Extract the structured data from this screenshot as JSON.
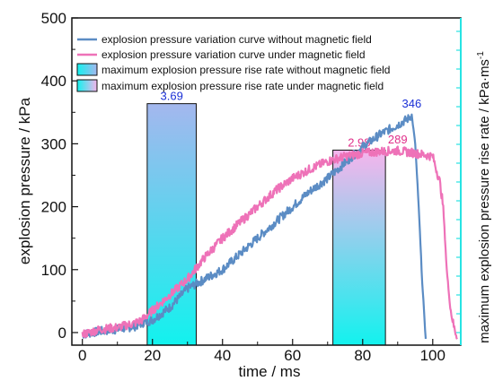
{
  "chart_data": {
    "type": "line",
    "xlabel": "time / ms",
    "ylabel": "explosion pressure / kPa",
    "y2label": "maximum explosion pressure rise rate / kPa·ms",
    "y2label_sup": "-1",
    "xlim": [
      -3,
      108
    ],
    "ylim": [
      -20,
      500
    ],
    "x_ticks": [
      0,
      20,
      40,
      60,
      80,
      100
    ],
    "y_ticks": [
      0,
      100,
      200,
      300,
      400,
      500
    ],
    "grid": false,
    "legend_position": "top-left",
    "colors": {
      "without_field": "#5b8cc4",
      "under_field": "#ee72b8",
      "bar_label_without": "#1a2fd6",
      "bar_label_under": "#e0308a",
      "right_axis": "#27e3e3",
      "bar_top_without": "#a4b7ee",
      "bar_top_under": "#f6b4ec",
      "bar_bottom": "#12f2ee"
    },
    "series": [
      {
        "name": "explosion pressure variation curve without magnetic field",
        "key": "without_field",
        "x": [
          0,
          5,
          10,
          15,
          17,
          20,
          25,
          30,
          35,
          40,
          45,
          50,
          55,
          60,
          65,
          70,
          75,
          80,
          85,
          90,
          93,
          94,
          95,
          96,
          97,
          98
        ],
        "y": [
          -3,
          2,
          5,
          10,
          15,
          20,
          40,
          70,
          85,
          100,
          125,
          150,
          175,
          200,
          225,
          245,
          270,
          295,
          315,
          330,
          340,
          346,
          300,
          200,
          80,
          -10
        ]
      },
      {
        "name": "explosion pressure variation curve under magnetic field",
        "key": "under_field",
        "x": [
          0,
          5,
          10,
          15,
          17,
          20,
          25,
          30,
          35,
          40,
          45,
          50,
          55,
          60,
          65,
          70,
          75,
          80,
          85,
          90,
          95,
          100,
          102,
          103,
          104,
          105,
          106,
          107
        ],
        "y": [
          -3,
          5,
          8,
          15,
          20,
          35,
          60,
          85,
          120,
          150,
          175,
          200,
          225,
          245,
          260,
          272,
          280,
          285,
          288,
          289,
          285,
          280,
          240,
          200,
          100,
          40,
          10,
          -8
        ]
      }
    ],
    "bars": [
      {
        "name": "maximum explosion pressure rise rate without magnetic field",
        "key": "without_field",
        "x_start": 18.5,
        "x_end": 32.5,
        "value": 3.69,
        "label": "3.69"
      },
      {
        "name": "maximum explosion pressure rise rate under magnetic field",
        "key": "under_field",
        "x_start": 71.5,
        "x_end": 86.5,
        "value": 2.98,
        "label": "2.98"
      }
    ],
    "annotations": [
      {
        "text": "346",
        "x": 94,
        "y": 346,
        "key": "without_field"
      },
      {
        "text": "289",
        "x": 90,
        "y": 289,
        "key": "under_field"
      }
    ]
  }
}
